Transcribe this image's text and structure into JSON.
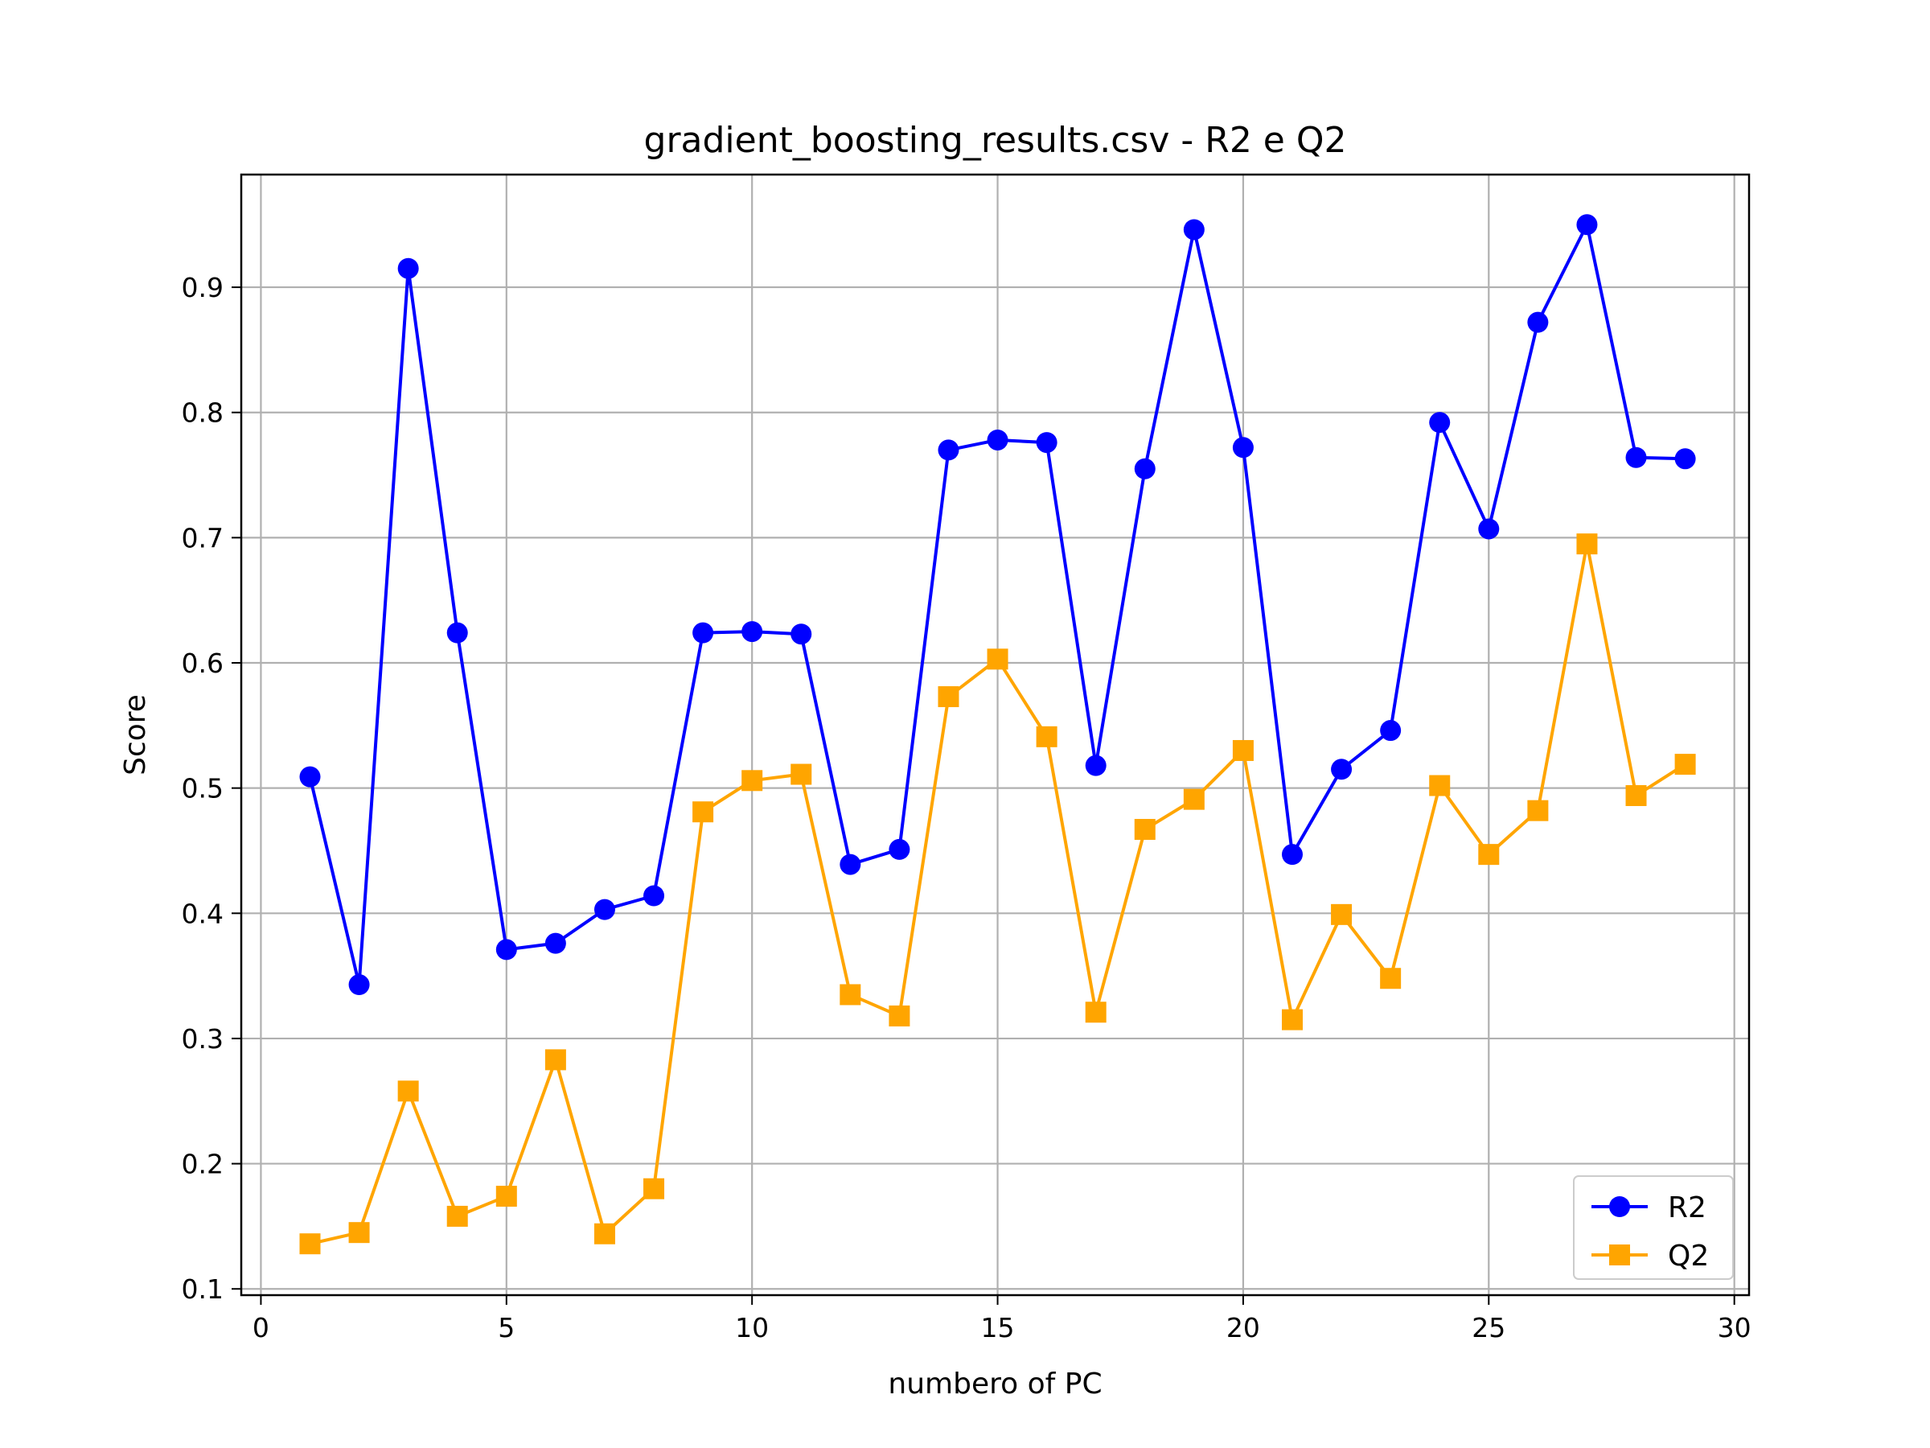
{
  "chart_data": {
    "type": "line",
    "title": "gradient_boosting_results.csv - R2 e Q2",
    "xlabel": "numbero of PC",
    "ylabel": "Score",
    "xlim": [
      -0.4,
      30.3
    ],
    "ylim": [
      0.095,
      0.99
    ],
    "xticks": [
      0,
      5,
      10,
      15,
      20,
      25,
      30
    ],
    "yticks": [
      0.1,
      0.2,
      0.3,
      0.4,
      0.5,
      0.6,
      0.7,
      0.8,
      0.9
    ],
    "grid": true,
    "legend_position": "lower-right",
    "x": [
      1,
      2,
      3,
      4,
      5,
      6,
      7,
      8,
      9,
      10,
      11,
      12,
      13,
      14,
      15,
      16,
      17,
      18,
      19,
      20,
      21,
      22,
      23,
      24,
      25,
      26,
      27,
      28,
      29
    ],
    "series": [
      {
        "name": "R2",
        "color": "#0000ff",
        "marker": "circle",
        "values": [
          0.509,
          0.343,
          0.915,
          0.624,
          0.371,
          0.376,
          0.403,
          0.414,
          0.624,
          0.625,
          0.623,
          0.439,
          0.451,
          0.77,
          0.778,
          0.776,
          0.518,
          0.755,
          0.946,
          0.772,
          0.447,
          0.515,
          0.546,
          0.792,
          0.707,
          0.872,
          0.95,
          0.764,
          0.763
        ]
      },
      {
        "name": "Q2",
        "color": "#ffa500",
        "marker": "square",
        "values": [
          0.136,
          0.145,
          0.258,
          0.158,
          0.174,
          0.283,
          0.144,
          0.18,
          0.481,
          0.506,
          0.511,
          0.335,
          0.318,
          0.573,
          0.603,
          0.541,
          0.321,
          0.467,
          0.491,
          0.53,
          0.315,
          0.399,
          0.348,
          0.502,
          0.447,
          0.482,
          0.695,
          0.494,
          0.519
        ]
      }
    ]
  }
}
